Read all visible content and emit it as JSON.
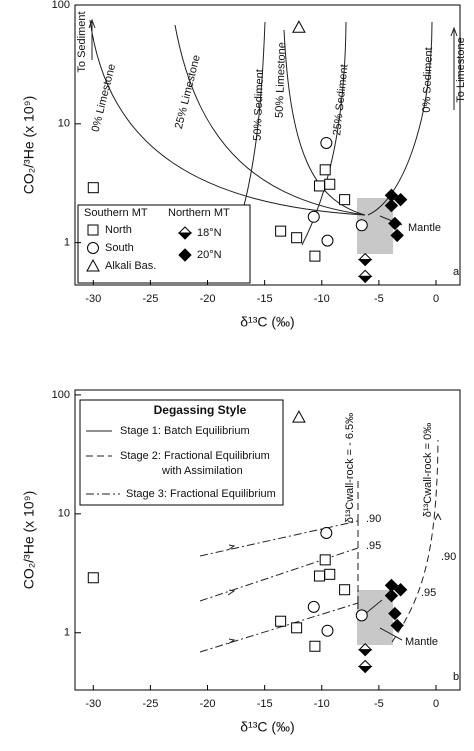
{
  "chart_data": [
    {
      "type": "scatter",
      "log_y": true,
      "xlabel": "δ¹³C (‰)",
      "ylabel": "CO₂/³He (x 10⁹)",
      "xlim": [
        -31.6,
        2.1
      ],
      "ylim": [
        0.44,
        100
      ],
      "xticks": [
        -30,
        -25,
        -20,
        -15,
        -10,
        -5,
        0
      ],
      "yticks": [
        1,
        10,
        100
      ],
      "legend_titles": [
        "Southern MT",
        "Northern MT"
      ],
      "series": [
        {
          "name": "North",
          "marker": "square",
          "color": "#ffffff",
          "x": [
            -30,
            -9.7,
            -10.2,
            -9.3,
            -8.0,
            -13.6,
            -12.2,
            -10.6
          ],
          "values": [
            2.9,
            4.1,
            3.0,
            3.1,
            2.3,
            1.25,
            1.1,
            0.77
          ]
        },
        {
          "name": "South",
          "marker": "circle",
          "color": "#ffffff",
          "x": [
            -9.6,
            -10.7,
            -9.5,
            -6.5
          ],
          "values": [
            6.9,
            1.65,
            1.04,
            1.4
          ]
        },
        {
          "name": "Alkali Bas.",
          "marker": "triangle",
          "color": "#ffffff",
          "x": [
            -12
          ],
          "values": [
            65
          ]
        },
        {
          "name": "18°N",
          "marker": "half-diamond",
          "color": "#000000",
          "x": [
            -6.2,
            -6.2
          ],
          "values": [
            0.72,
            0.52
          ]
        },
        {
          "name": "20°N",
          "marker": "diamond",
          "color": "#000000",
          "x": [
            -3.9,
            -3.1,
            -3.9,
            -3.6,
            -3.4
          ],
          "values": [
            2.5,
            2.3,
            2.05,
            1.45,
            1.15
          ]
        }
      ],
      "annotations": [
        "To Sediment",
        "0% Limestone",
        "25% Limestone",
        "50% Sediment",
        "50% Limestone",
        "25% Sediment",
        "0% Sediment",
        "To Limestone",
        "Mantle",
        "a"
      ]
    },
    {
      "type": "scatter",
      "log_y": true,
      "xlabel": "δ¹³C (‰)",
      "ylabel": "CO₂/³He (x 10⁹)",
      "xlim": [
        -31.6,
        2.1
      ],
      "ylim": [
        0.33,
        110
      ],
      "xticks": [
        -30,
        -25,
        -20,
        -15,
        -10,
        -5,
        0
      ],
      "yticks": [
        1,
        10,
        100
      ],
      "series": [
        {
          "marker": "square",
          "color": "#ffffff",
          "x": [
            -30,
            -9.7,
            -10.2,
            -9.3,
            -8.0,
            -13.6,
            -12.2,
            -10.6
          ],
          "values": [
            2.9,
            4.1,
            3.0,
            3.1,
            2.3,
            1.25,
            1.1,
            0.77
          ]
        },
        {
          "marker": "circle",
          "color": "#ffffff",
          "x": [
            -9.6,
            -10.7,
            -9.5,
            -6.5
          ],
          "values": [
            6.9,
            1.65,
            1.04,
            1.4
          ]
        },
        {
          "marker": "triangle",
          "color": "#ffffff",
          "x": [
            -12
          ],
          "values": [
            65
          ]
        },
        {
          "marker": "half-diamond",
          "color": "#000000",
          "x": [
            -6.2,
            -6.2
          ],
          "values": [
            0.72,
            0.52
          ]
        },
        {
          "marker": "diamond",
          "color": "#000000",
          "x": [
            -3.9,
            -3.1,
            -3.9,
            -3.6,
            -3.4
          ],
          "values": [
            2.5,
            2.3,
            2.05,
            1.45,
            1.15
          ]
        }
      ],
      "annotations": [
        "Degassing Style",
        "Stage 1: Batch Equilibrium",
        "Stage 2: Fractional Equilibrium",
        "with Assimilation",
        "Stage 3: Fractional Equilibrium",
        ".90",
        ".95",
        ".90",
        ".95",
        "δ¹³Cwall-rock = - 6.5‰",
        "δ¹³Cwall-rock = 0‰",
        "Mantle",
        "b"
      ]
    }
  ]
}
